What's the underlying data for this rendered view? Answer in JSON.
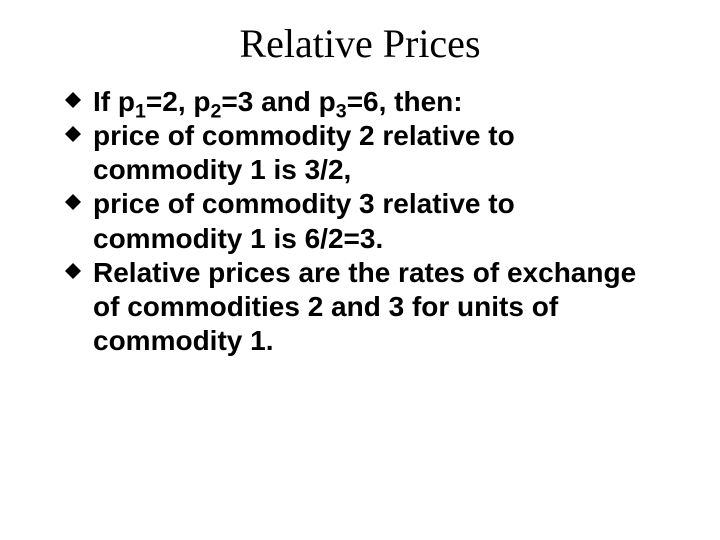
{
  "title": "Relative Prices",
  "bullet_marker": {
    "fill": "#000000",
    "size": 16
  },
  "bullets": [
    {
      "segments": [
        {
          "t": "If p",
          "sub": null
        },
        {
          "t": "1",
          "sub": true
        },
        {
          "t": "=2, p",
          "sub": null
        },
        {
          "t": "2",
          "sub": true
        },
        {
          "t": "=3 and p",
          "sub": null
        },
        {
          "t": "3",
          "sub": true
        },
        {
          "t": "=6, then:",
          "sub": null
        }
      ]
    },
    {
      "segments": [
        {
          "t": "price of commodity 2 relative to commodity 1 is 3/2,",
          "sub": null
        }
      ]
    },
    {
      "segments": [
        {
          "t": "price of commodity 3 relative to commodity 1 is 6/2=3.",
          "sub": null
        }
      ]
    },
    {
      "segments": [
        {
          "t": "Relative prices are the rates of exchange of commodities 2 and 3 for units of commodity 1.",
          "sub": null
        }
      ]
    }
  ],
  "colors": {
    "background": "#ffffff",
    "text": "#000000"
  },
  "fonts": {
    "title_family": "Times New Roman",
    "title_size_pt": 40,
    "body_family": "Arial",
    "body_size_pt": 28,
    "body_weight": "bold"
  }
}
